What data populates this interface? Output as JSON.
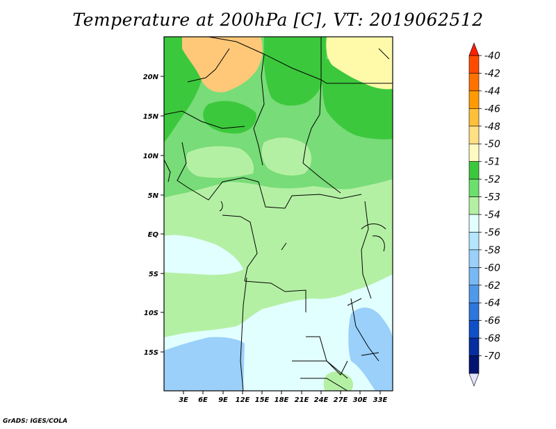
{
  "title": "Temperature at 200hPa [C], VT: 2019062512",
  "credit": "GrADS: IGES/COLA",
  "map": {
    "lat_labels": [
      "20N",
      "15N",
      "10N",
      "5N",
      "EQ",
      "5S",
      "10S",
      "15S"
    ],
    "lon_labels": [
      "3E",
      "6E",
      "9E",
      "12E",
      "15E",
      "18E",
      "21E",
      "24E",
      "27E",
      "30E",
      "33E"
    ]
  },
  "colorbar": {
    "labels": [
      "-40",
      "-42",
      "-44",
      "-46",
      "-48",
      "-50",
      "-51",
      "-52",
      "-53",
      "-54",
      "-56",
      "-58",
      "-60",
      "-62",
      "-64",
      "-66",
      "-68",
      "-70"
    ],
    "colors": [
      "#ff2000",
      "#ff4a00",
      "#ff7200",
      "#ff9a00",
      "#ffc039",
      "#ffe083",
      "#fffac2",
      "#3cc83c",
      "#6ce06c",
      "#b4f0a4",
      "#e2ffff",
      "#b4e6ff",
      "#9ad0fa",
      "#78b8f4",
      "#5098ea",
      "#2c76dc",
      "#1050c6",
      "#062ea0",
      "#001470",
      "#e2e2ff"
    ]
  },
  "colors": {
    "yellow_orange": "#ffc878",
    "yellow_light": "#fffaaa",
    "green_dark": "#3cc83c",
    "green_mid": "#78dc78",
    "green_light": "#b4f0a4",
    "cyan_light": "#e2ffff",
    "blue_light": "#9ad0fa"
  }
}
